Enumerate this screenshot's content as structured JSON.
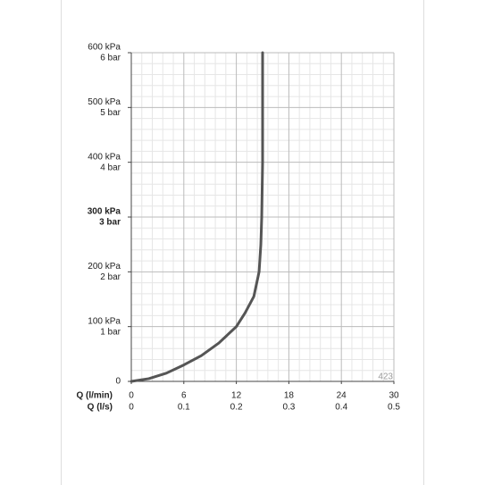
{
  "chart_data": {
    "type": "line",
    "x": [
      0,
      2,
      4,
      6,
      8,
      10,
      12,
      13,
      14,
      14.6,
      14.8,
      14.9,
      15,
      15,
      15
    ],
    "series": [
      {
        "color": "#555555",
        "values": [
          0,
          5,
          15,
          30,
          47,
          70,
          100,
          125,
          155,
          200,
          250,
          300,
          400,
          500,
          600
        ]
      }
    ],
    "xlim": [
      0,
      30
    ],
    "xticks": [
      0,
      6,
      12,
      18,
      24,
      30
    ],
    "xlabel": "Q (l/min)",
    "x2lim": [
      0,
      0.5
    ],
    "x2ticks": [
      0,
      0.1,
      0.2,
      0.3,
      0.4,
      0.5
    ],
    "x2label": "Q (l/s)",
    "ylim": [
      0,
      600
    ],
    "yticks": [
      0,
      {
        "value": 100,
        "label": "100 kPa"
      },
      {
        "value": 200,
        "label": "200 kPa"
      },
      {
        "value": 300,
        "label": "300 kPa"
      },
      {
        "value": 400,
        "label": "400 kPa"
      },
      {
        "value": 500,
        "label": "500 kPa"
      },
      {
        "value": 600,
        "label": "600 kPa"
      }
    ],
    "ybar_labels": [
      null,
      "1 bar",
      "2 bar",
      "3 bar",
      "4 bar",
      "5 bar",
      "6 bar"
    ],
    "bold_ytick": 300,
    "annotation": "423",
    "grid": true
  }
}
